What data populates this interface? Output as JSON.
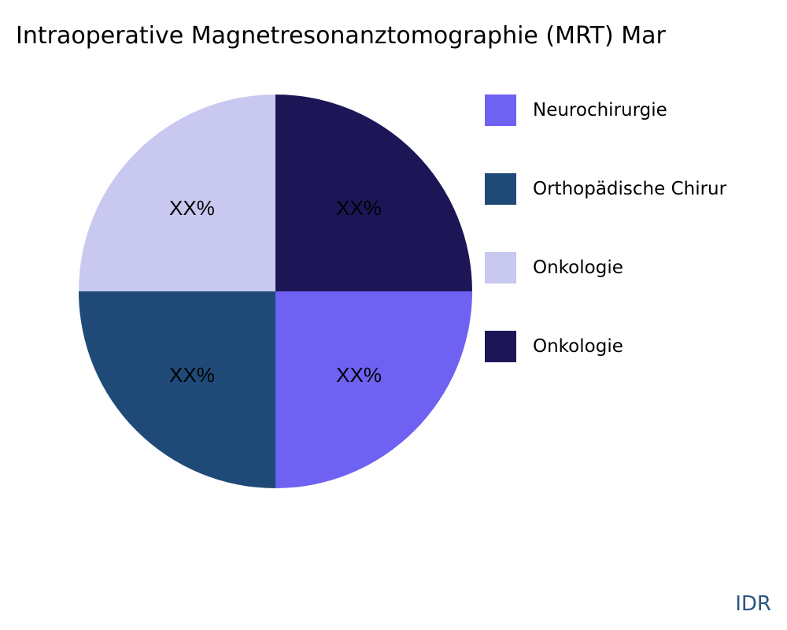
{
  "chart_data": {
    "type": "pie",
    "title": "Intraoperative Magnetresonanztomographie (MRT) Mar",
    "slices": [
      {
        "label": "Neurochirurgie",
        "value": 25,
        "data_label": "XX%",
        "color": "#6f61f1"
      },
      {
        "label": "Orthopädische Chirur",
        "value": 25,
        "data_label": "XX%",
        "color": "#1f4a78"
      },
      {
        "label": "Onkologie",
        "value": 25,
        "data_label": "XX%",
        "color": "#c8c8f0"
      },
      {
        "label": "Onkologie",
        "value": 25,
        "data_label": "XX%",
        "color": "#1c1657"
      }
    ],
    "start_angle": "3 o'clock",
    "direction": "clockwise",
    "legend_position": "right"
  },
  "watermark": "IDR"
}
